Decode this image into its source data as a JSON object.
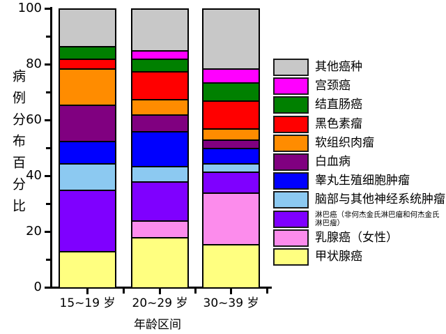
{
  "figure": {
    "background": "#FFFFFF",
    "axis_color": "#000000",
    "segment_border_color": "#000000"
  },
  "chart_data": {
    "type": "bar",
    "stacked": true,
    "orientation": "vertical",
    "title": "",
    "xlabel": "年龄区间",
    "ylabel": "病例分布百分比",
    "ylim": [
      0,
      100
    ],
    "yticks_major": [
      0,
      20,
      40,
      60,
      80,
      100
    ],
    "yticks_minor": [
      10,
      30,
      50,
      70,
      90
    ],
    "grid": false,
    "legend_position": "right",
    "legend_order": "top_to_bottom_is_reverse_of_stack",
    "categories": [
      "15~19 岁",
      "20~29 岁",
      "30~39 岁"
    ],
    "series": [
      {
        "name": "甲状腺癌",
        "color": "#FFFF80",
        "values": [
          13,
          18,
          15.5
        ]
      },
      {
        "name": "乳腺癌（女性）",
        "color": "#FC8CEC",
        "values": [
          0,
          6,
          18.5
        ]
      },
      {
        "name": "淋巴癌（非何杰金氏淋巴瘤和何杰金氏淋巴瘤）",
        "color": "#7F00FF",
        "values": [
          22,
          14,
          7.5
        ]
      },
      {
        "name": "脑部与其他神经系统肿瘤",
        "color": "#8CC9F1",
        "values": [
          9.5,
          5.5,
          3
        ]
      },
      {
        "name": "睾丸生殖细胞肿瘤",
        "color": "#0000FF",
        "values": [
          8,
          12.5,
          5.5
        ]
      },
      {
        "name": "白血病",
        "color": "#800080",
        "values": [
          13,
          6,
          3
        ]
      },
      {
        "name": "软组织肉瘤",
        "color": "#FF8C00",
        "values": [
          13,
          5.5,
          4
        ]
      },
      {
        "name": "黑色素瘤",
        "color": "#FF0000",
        "values": [
          3.5,
          10,
          10
        ]
      },
      {
        "name": "结直肠癌",
        "color": "#008000",
        "values": [
          4.5,
          4.5,
          6.5
        ]
      },
      {
        "name": "宫颈癌",
        "color": "#FF00FF",
        "values": [
          0,
          3,
          5
        ]
      },
      {
        "name": "其他癌种",
        "color": "#C8C8C8",
        "values": [
          13.5,
          15,
          21.5
        ]
      }
    ]
  }
}
